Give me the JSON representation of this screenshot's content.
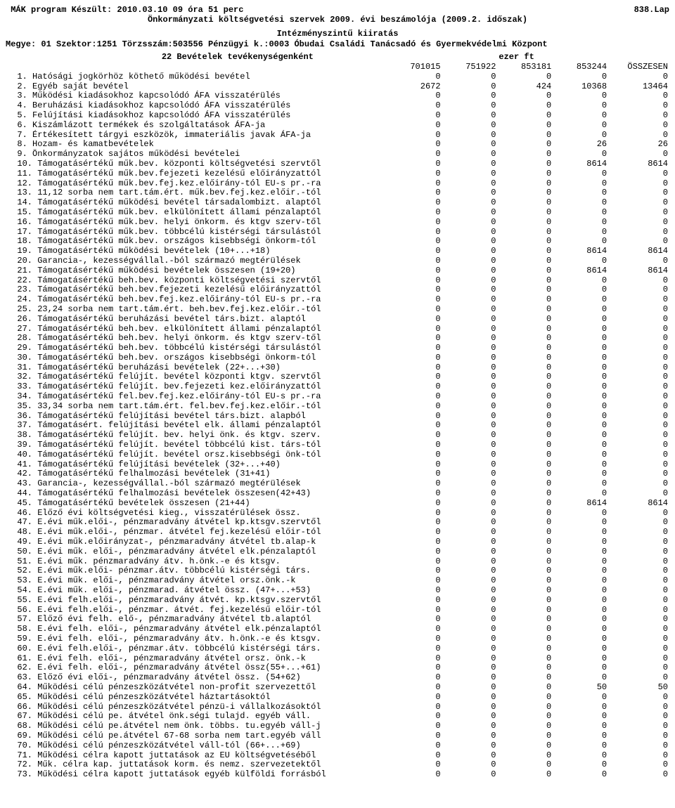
{
  "header": {
    "left_top": " MÁK program Készült: 2010.03.10  09 óra 51 perc",
    "right_top": "838.Lap",
    "line2_center": "Önkormányzati költségvetési szervek 2009. évi beszámolója (2009.2. időszak)",
    "line3_center": "Intézményszintű kiiratás",
    "line4": "Megye: 01  Szektor:1251  Törzsszám:503556 Pénzügyi k.:0003 Óbudai Családi Tanácsadó és Gyermekvédelmi Központ"
  },
  "report": {
    "title_left": "22  Bevételek tevékenységenként",
    "title_right": "ezer ft",
    "col_headers": [
      "701015",
      "751922",
      "853181",
      "853244",
      "ÖSSZESEN"
    ]
  },
  "rows": [
    {
      "n": "1.",
      "label": "Hatósági jogkörhöz köthető működési bevétel",
      "v": [
        "0",
        "0",
        "0",
        "0",
        "0"
      ]
    },
    {
      "n": "2.",
      "label": "Egyéb saját bevétel",
      "v": [
        "2672",
        "0",
        "424",
        "10368",
        "13464"
      ]
    },
    {
      "n": "3.",
      "label": "Működési kiadásokhoz kapcsolódó ÁFA visszatérülés",
      "v": [
        "0",
        "0",
        "0",
        "0",
        "0"
      ]
    },
    {
      "n": "4.",
      "label": "Beruházási kiadásokhoz kapcsolódó ÁFA visszatérülés",
      "v": [
        "0",
        "0",
        "0",
        "0",
        "0"
      ]
    },
    {
      "n": "5.",
      "label": "Felújítási kiadásokhoz kapcsolódó ÁFA visszatérülés",
      "v": [
        "0",
        "0",
        "0",
        "0",
        "0"
      ]
    },
    {
      "n": "6.",
      "label": "Kiszámlázott termékek és szolgáltatások ÁFA-ja",
      "v": [
        "0",
        "0",
        "0",
        "0",
        "0"
      ]
    },
    {
      "n": "7.",
      "label": "Értékesített tárgyi eszközök, immateriális javak ÁFA-ja",
      "v": [
        "0",
        "0",
        "0",
        "0",
        "0"
      ]
    },
    {
      "n": "8.",
      "label": "Hozam- és kamatbevételek",
      "v": [
        "0",
        "0",
        "0",
        "26",
        "26"
      ]
    },
    {
      "n": "9.",
      "label": "Önkormányzatok sajátos működési bevételei",
      "v": [
        "0",
        "0",
        "0",
        "0",
        "0"
      ]
    },
    {
      "n": "10.",
      "label": "Támogatásértékű műk.bev. központi költségvetési szervtől",
      "v": [
        "0",
        "0",
        "0",
        "8614",
        "8614"
      ]
    },
    {
      "n": "11.",
      "label": "Támogatásértékű műk.bev.fejezeti kezelésű előirányzattól",
      "v": [
        "0",
        "0",
        "0",
        "0",
        "0"
      ]
    },
    {
      "n": "12.",
      "label": "Támogatásértékű műk.bev.fej.kez.előirány-tól EU-s pr.-ra",
      "v": [
        "0",
        "0",
        "0",
        "0",
        "0"
      ]
    },
    {
      "n": "13.",
      "label": "11,12 sorba nem tart.tám.ért. műk.bev.fej.kez.előir.-tól",
      "v": [
        "0",
        "0",
        "0",
        "0",
        "0"
      ]
    },
    {
      "n": "14.",
      "label": "Támogatásértékű működési bevétel társadalombizt. alaptól",
      "v": [
        "0",
        "0",
        "0",
        "0",
        "0"
      ]
    },
    {
      "n": "15.",
      "label": "Támogatásértékű műk.bev. elkülönített állami pénzalaptól",
      "v": [
        "0",
        "0",
        "0",
        "0",
        "0"
      ]
    },
    {
      "n": "16.",
      "label": "Támogatásértékű műk.bev. helyi önkorm. és ktgv szerv-től",
      "v": [
        "0",
        "0",
        "0",
        "0",
        "0"
      ]
    },
    {
      "n": "17.",
      "label": "Támogatásértékű műk.bev. többcélú kistérségi társulástól",
      "v": [
        "0",
        "0",
        "0",
        "0",
        "0"
      ]
    },
    {
      "n": "18.",
      "label": "Támogatásértékű műk.bev. országos kisebbségi önkorm-tól",
      "v": [
        "0",
        "0",
        "0",
        "0",
        "0"
      ]
    },
    {
      "n": "19.",
      "label": "  Támogatásértékű működési bevételek (10+...+18)",
      "v": [
        "0",
        "0",
        "0",
        "8614",
        "8614"
      ]
    },
    {
      "n": "20.",
      "label": "Garancia-, kezességvállal.-ból származó megtérülések",
      "v": [
        "0",
        "0",
        "0",
        "0",
        "0"
      ]
    },
    {
      "n": "21.",
      "label": "  Támogatásértékű működési bevételek összesen (19+20)",
      "v": [
        "0",
        "0",
        "0",
        "8614",
        "8614"
      ]
    },
    {
      "n": "22.",
      "label": "Támogatásértékű beh.bev. központi költségvetési szervtől",
      "v": [
        "0",
        "0",
        "0",
        "0",
        "0"
      ]
    },
    {
      "n": "23.",
      "label": "Támogatásértékű beh.bev.fejezeti kezelésű előirányzattól",
      "v": [
        "0",
        "0",
        "0",
        "0",
        "0"
      ]
    },
    {
      "n": "24.",
      "label": "Támogatásértékű beh.bev.fej.kez.előirány-tól EU-s pr.-ra",
      "v": [
        "0",
        "0",
        "0",
        "0",
        "0"
      ]
    },
    {
      "n": "25.",
      "label": "23,24 sorba nem tart.tám.ért. beh.bev.fej.kez.előir.-tól",
      "v": [
        "0",
        "0",
        "0",
        "0",
        "0"
      ]
    },
    {
      "n": "26.",
      "label": "Támogatásértékű beruházási bevétel társ.bizt. alaptól",
      "v": [
        "0",
        "0",
        "0",
        "0",
        "0"
      ]
    },
    {
      "n": "27.",
      "label": "Támogatásértékű beh.bev. elkülönített állami pénzalaptól",
      "v": [
        "0",
        "0",
        "0",
        "0",
        "0"
      ]
    },
    {
      "n": "28.",
      "label": "Támogatásértékű beh.bev. helyi önkorm. és ktgv szerv-től",
      "v": [
        "0",
        "0",
        "0",
        "0",
        "0"
      ]
    },
    {
      "n": "29.",
      "label": "Támogatásértékű beh.bev. többcélú kistérségi társulástól",
      "v": [
        "0",
        "0",
        "0",
        "0",
        "0"
      ]
    },
    {
      "n": "30.",
      "label": "Támogatásértékű beh.bev. országos kisebbségi önkorm-tól",
      "v": [
        "0",
        "0",
        "0",
        "0",
        "0"
      ]
    },
    {
      "n": "31.",
      "label": "  Támogatásértékű beruházási bevételek (22+...+30)",
      "v": [
        "0",
        "0",
        "0",
        "0",
        "0"
      ]
    },
    {
      "n": "32.",
      "label": "Támogatásértékű felújít. bevétel központi ktgv. szervtől",
      "v": [
        "0",
        "0",
        "0",
        "0",
        "0"
      ]
    },
    {
      "n": "33.",
      "label": "Támogatásértékű felújít. bev.fejezeti kez.előirányzattól",
      "v": [
        "0",
        "0",
        "0",
        "0",
        "0"
      ]
    },
    {
      "n": "34.",
      "label": "Támogatásértékű fel.bev.fej.kez.előirány-tól EU-s pr.-ra",
      "v": [
        "0",
        "0",
        "0",
        "0",
        "0"
      ]
    },
    {
      "n": "35.",
      "label": "33,34 sorba nem tart.tám.ért. fel.bev.fej.kez.előir.-tól",
      "v": [
        "0",
        "0",
        "0",
        "0",
        "0"
      ]
    },
    {
      "n": "36.",
      "label": "Támogatásértékű felújítási bevétel társ.bizt. alapból",
      "v": [
        "0",
        "0",
        "0",
        "0",
        "0"
      ]
    },
    {
      "n": "37.",
      "label": "Támogatásért. felújítási bevétel elk. állami pénzalaptól",
      "v": [
        "0",
        "0",
        "0",
        "0",
        "0"
      ]
    },
    {
      "n": "38.",
      "label": "Támogatásértékű felújít. bev. helyi önk. és ktgv. szerv.",
      "v": [
        "0",
        "0",
        "0",
        "0",
        "0"
      ]
    },
    {
      "n": "39.",
      "label": "Támogatásértékű felújít. bevétel többcélú kist. társ-tól",
      "v": [
        "0",
        "0",
        "0",
        "0",
        "0"
      ]
    },
    {
      "n": "40.",
      "label": "Támogatásértékű felújít. bevétel orsz.kisebbségi önk-tól",
      "v": [
        "0",
        "0",
        "0",
        "0",
        "0"
      ]
    },
    {
      "n": "41.",
      "label": "  Támogatásértékű felújítási bevételek (32+...+40)",
      "v": [
        "0",
        "0",
        "0",
        "0",
        "0"
      ]
    },
    {
      "n": "42.",
      "label": "  Támogatásértékű felhalmozási bevételek (31+41)",
      "v": [
        "0",
        "0",
        "0",
        "0",
        "0"
      ]
    },
    {
      "n": "43.",
      "label": "Garancia-, kezességvállal.-ból származó megtérülések",
      "v": [
        "0",
        "0",
        "0",
        "0",
        "0"
      ]
    },
    {
      "n": "44.",
      "label": "  Támogatásértékű felhalmozási bevételek összesen(42+43)",
      "v": [
        "0",
        "0",
        "0",
        "0",
        "0"
      ]
    },
    {
      "n": "45.",
      "label": "  Támogatásértékű bevételek összesen (21+44)",
      "v": [
        "0",
        "0",
        "0",
        "8614",
        "8614"
      ]
    },
    {
      "n": "46.",
      "label": "Előző évi költségvetési kieg., visszatérülések össz.",
      "v": [
        "0",
        "0",
        "0",
        "0",
        "0"
      ]
    },
    {
      "n": "47.",
      "label": "E.évi műk.elői-, pénzmaradvány átvétel kp.ktsgv.szervtől",
      "v": [
        "0",
        "0",
        "0",
        "0",
        "0"
      ]
    },
    {
      "n": "48.",
      "label": "E.évi műk.elői-, pénzmar. átvétel fej.kezelésű előir-tól",
      "v": [
        "0",
        "0",
        "0",
        "0",
        "0"
      ]
    },
    {
      "n": "49.",
      "label": "E.évi műk.előirányzat-, pénzmaradvány átvétel tb.alap-k",
      "v": [
        "0",
        "0",
        "0",
        "0",
        "0"
      ]
    },
    {
      "n": "50.",
      "label": "E.évi műk. elői-, pénzmaradvány átvétel elk.pénzalaptól",
      "v": [
        "0",
        "0",
        "0",
        "0",
        "0"
      ]
    },
    {
      "n": "51.",
      "label": "E.évi műk. pénzmaradvány átv. h.önk.-e és ktsgv.",
      "v": [
        "0",
        "0",
        "0",
        "0",
        "0"
      ]
    },
    {
      "n": "52.",
      "label": "E.évi műk.elői- pénzmar.átv. többcélú kistérségi társ.",
      "v": [
        "0",
        "0",
        "0",
        "0",
        "0"
      ]
    },
    {
      "n": "53.",
      "label": "E.évi műk. elői-, pénzmaradvány átvétel orsz.önk.-k",
      "v": [
        "0",
        "0",
        "0",
        "0",
        "0"
      ]
    },
    {
      "n": "54.",
      "label": " E.évi műk. elői-, pénzmarad. átvétel össz. (47+...+53)",
      "v": [
        "0",
        "0",
        "0",
        "0",
        "0"
      ]
    },
    {
      "n": "55.",
      "label": "E.évi felh.elői-, pénzmaradvány átvét. kp.ktsgv.szervtől",
      "v": [
        "0",
        "0",
        "0",
        "0",
        "0"
      ]
    },
    {
      "n": "56.",
      "label": "E.évi felh.elői-, pénzmar. átvét. fej.kezelésű előir-tól",
      "v": [
        "0",
        "0",
        "0",
        "0",
        "0"
      ]
    },
    {
      "n": "57.",
      "label": "Előző évi felh. elő-, pénzmaradvány átvétel tb.alaptól",
      "v": [
        "0",
        "0",
        "0",
        "0",
        "0"
      ]
    },
    {
      "n": "58.",
      "label": "E.évi felh. elői-, pénzmaradvány átvétel elk.pénzalaptól",
      "v": [
        "0",
        "0",
        "0",
        "0",
        "0"
      ]
    },
    {
      "n": "59.",
      "label": "E.évi felh. elői-, pénzmaradvány átv. h.önk.-e és ktsgv.",
      "v": [
        "0",
        "0",
        "0",
        "0",
        "0"
      ]
    },
    {
      "n": "60.",
      "label": "E.évi felh.elői-, pénzmar.átv. többcélú kistérségi társ.",
      "v": [
        "0",
        "0",
        "0",
        "0",
        "0"
      ]
    },
    {
      "n": "61.",
      "label": "E.évi felh. elői-, pénzmaradvány átvétel orsz. önk.-k",
      "v": [
        "0",
        "0",
        "0",
        "0",
        "0"
      ]
    },
    {
      "n": "62.",
      "label": "E.évi felh. elői-, pénzmaradvány átvétel össz(55+...+61)",
      "v": [
        "0",
        "0",
        "0",
        "0",
        "0"
      ]
    },
    {
      "n": "63.",
      "label": " Előző évi elői-, pénzmaradvány átvétel össz. (54+62)",
      "v": [
        "0",
        "0",
        "0",
        "0",
        "0"
      ]
    },
    {
      "n": "64.",
      "label": "Működési célú pénzeszközátvétel non-profit szervezettől",
      "v": [
        "0",
        "0",
        "0",
        "50",
        "50"
      ]
    },
    {
      "n": "65.",
      "label": "Működési célú pénzeszközátvétel háztartásoktól",
      "v": [
        "0",
        "0",
        "0",
        "0",
        "0"
      ]
    },
    {
      "n": "66.",
      "label": "Működési célú pénzeszközátvétel pénzü-i vállalkozásoktól",
      "v": [
        "0",
        "0",
        "0",
        "0",
        "0"
      ]
    },
    {
      "n": "67.",
      "label": "Működési célú pe. átvétel önk.ségi tulajd. egyéb váll.",
      "v": [
        "0",
        "0",
        "0",
        "0",
        "0"
      ]
    },
    {
      "n": "68.",
      "label": "Működési célú pe.átvétel nem önk. többs. tu.egyéb váll-j",
      "v": [
        "0",
        "0",
        "0",
        "0",
        "0"
      ]
    },
    {
      "n": "69.",
      "label": "Működési célú pe.átvétel 67-68 sorba nem tart.egyéb váll",
      "v": [
        "0",
        "0",
        "0",
        "0",
        "0"
      ]
    },
    {
      "n": "70.",
      "label": "  Működési célú pénzeszközátvétel váll-tól (66+...+69)",
      "v": [
        "0",
        "0",
        "0",
        "0",
        "0"
      ]
    },
    {
      "n": "71.",
      "label": "Működési célra kapott juttatások az EU költségvetéséből",
      "v": [
        "0",
        "0",
        "0",
        "0",
        "0"
      ]
    },
    {
      "n": "72.",
      "label": "Műk. célra kap. juttatások korm. és nemz. szervezetektől",
      "v": [
        "0",
        "0",
        "0",
        "0",
        "0"
      ]
    },
    {
      "n": "73.",
      "label": "Működési célra kapott juttatások egyéb külföldi forrásból",
      "v": [
        "0",
        "0",
        "0",
        "0",
        "0"
      ]
    }
  ]
}
